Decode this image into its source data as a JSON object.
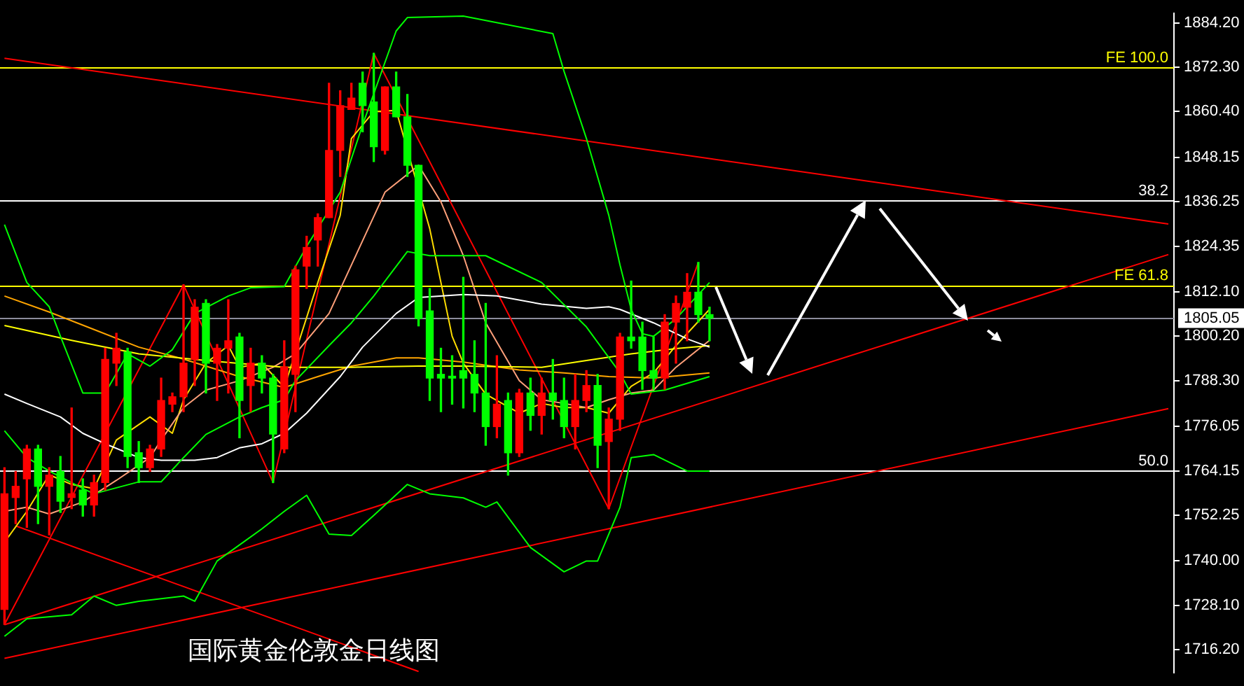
{
  "chart_data": {
    "type": "candlestick",
    "title": "国际黄金伦敦金日线图",
    "categories": [
      null,
      null,
      null,
      null,
      null,
      null,
      null,
      null,
      null,
      null,
      null,
      null,
      null,
      null,
      null,
      null,
      null,
      null,
      null,
      null,
      null,
      null,
      null,
      null,
      null,
      null,
      null,
      null,
      null,
      null,
      null,
      null,
      null,
      null,
      null,
      null,
      null,
      null,
      null,
      null,
      null,
      null,
      null,
      null,
      null,
      null,
      null,
      null,
      null,
      null,
      null,
      null,
      null,
      null,
      null,
      null,
      null,
      null,
      null,
      null,
      null,
      null,
      null,
      null,
      null,
      null,
      null,
      null,
      null,
      null,
      null,
      null,
      null,
      null,
      null,
      null,
      null,
      null,
      null,
      null,
      null,
      null,
      null,
      null,
      null,
      null,
      null,
      null,
      null,
      null,
      null,
      null,
      null,
      null,
      null,
      null,
      null,
      null,
      null,
      null,
      null,
      null,
      null,
      null,
      null
    ],
    "ohlc": [
      [
        1727,
        1765,
        1723,
        1758
      ],
      [
        1757,
        1764,
        1750,
        1760
      ],
      [
        1762,
        1771,
        1749,
        1770
      ],
      [
        1770,
        1771,
        1750,
        1760
      ],
      [
        1760,
        1765,
        1747,
        1763
      ],
      [
        1764,
        1768,
        1753,
        1756
      ],
      [
        1757,
        1781,
        1754,
        1758
      ],
      [
        1759,
        1762,
        1752,
        1755
      ],
      [
        1755,
        1763,
        1752,
        1761
      ],
      [
        1761,
        1797,
        1759,
        1794
      ],
      [
        1793,
        1801,
        1787,
        1797
      ],
      [
        1796,
        1797,
        1765,
        1768
      ],
      [
        1769,
        1772,
        1761,
        1765
      ],
      [
        1765,
        1771,
        1764,
        1770
      ],
      [
        1770,
        1789,
        1768,
        1783
      ],
      [
        1782,
        1785,
        1780,
        1784
      ],
      [
        1784,
        1814,
        1780,
        1793
      ],
      [
        1794,
        1810,
        1787,
        1808
      ],
      [
        1809,
        1810,
        1785,
        1793
      ],
      [
        1793,
        1798,
        1783,
        1797
      ],
      [
        1797,
        1810,
        1785,
        1799
      ],
      [
        1800,
        1801,
        1773,
        1783
      ],
      [
        1787,
        1797,
        1780,
        1793
      ],
      [
        1793,
        1795,
        1785,
        1789
      ],
      [
        1789,
        1790,
        1761,
        1774
      ],
      [
        1770,
        1799,
        1769,
        1792
      ],
      [
        1790,
        1819,
        1780,
        1818
      ],
      [
        1819,
        1827,
        1813,
        1824
      ],
      [
        1826,
        1833,
        1819,
        1832
      ],
      [
        1832,
        1868,
        1832,
        1850
      ],
      [
        1850,
        1866,
        1843,
        1862
      ],
      [
        1861,
        1868,
        1861,
        1864
      ],
      [
        1868,
        1871,
        1855,
        1862
      ],
      [
        1863,
        1876,
        1847,
        1851
      ],
      [
        1850,
        1867,
        1849,
        1867
      ],
      [
        1867,
        1871,
        1859,
        1859
      ],
      [
        1859,
        1865,
        1843,
        1846
      ],
      [
        1846,
        1846,
        1803,
        1805
      ],
      [
        1807,
        1813,
        1783,
        1789
      ],
      [
        1790,
        1797,
        1780,
        1789
      ],
      [
        1789.5,
        1795,
        1782,
        1789
      ],
      [
        1791,
        1816,
        1781,
        1789
      ],
      [
        1790,
        1799,
        1780,
        1785
      ],
      [
        1785,
        1809,
        1771,
        1776
      ],
      [
        1776,
        1795,
        1773,
        1782
      ],
      [
        1783,
        1785,
        1763,
        1769
      ],
      [
        1769,
        1786,
        1768,
        1785
      ],
      [
        1785,
        1789,
        1775,
        1779
      ],
      [
        1779,
        1789,
        1774,
        1785
      ],
      [
        1785,
        1794,
        1778,
        1783
      ],
      [
        1783,
        1789,
        1773,
        1776
      ],
      [
        1776,
        1790,
        1770,
        1783
      ],
      [
        1783,
        1791,
        1780,
        1787
      ],
      [
        1787,
        1790,
        1765,
        1771
      ],
      [
        1772,
        1781,
        1754,
        1778
      ],
      [
        1778,
        1801,
        1775,
        1800
      ],
      [
        1800,
        1815,
        1797,
        1799
      ],
      [
        1800,
        1804,
        1786,
        1791
      ],
      [
        1791,
        1800,
        1786,
        1789
      ],
      [
        1789,
        1806,
        1786,
        1804
      ],
      [
        1804,
        1811,
        1793,
        1809
      ],
      [
        1808,
        1817,
        1799,
        1812
      ],
      [
        1812,
        1820,
        1804,
        1806
      ],
      [
        1806,
        1808,
        1799,
        1805.05
      ],
      null,
      null,
      null,
      null,
      null,
      null,
      null,
      null,
      null,
      null,
      null,
      null,
      null,
      null,
      null,
      null,
      null,
      null,
      null,
      null,
      null,
      null,
      null,
      null,
      null,
      null,
      null,
      null,
      null,
      null,
      null,
      null,
      null,
      null,
      null,
      null,
      null,
      null,
      null,
      null,
      null
    ],
    "series": [
      {
        "type": "line",
        "color": "#00ff00",
        "values": [
          1830.1,
          null,
          1814.6,
          null,
          1808.1,
          1800.2,
          null,
          1785.0,
          null,
          1785.0,
          null,
          1795.5,
          null,
          1792.2,
          null,
          1796.6,
          null,
          1806.3,
          null,
          null,
          1811.0,
          null,
          1813.2,
          null,
          null,
          1813.5,
          null,
          1824.3,
          null,
          null,
          1838.8,
          null,
          1856.8,
          null,
          null,
          1882.0,
          1885.6,
          null,
          null,
          null,
          null,
          1886.0,
          null,
          null,
          null,
          null,
          null,
          null,
          null,
          1881.3,
          1871.2,
          null,
          1853.2,
          null,
          1832.6,
          1819.3,
          1807.4,
          1800.9,
          1800.2,
          null,
          1804.9,
          null,
          null,
          1814.6,
          null,
          null,
          null,
          null,
          null,
          null,
          null,
          null,
          null,
          null,
          null,
          null,
          null,
          null,
          null,
          null,
          null,
          null,
          null,
          null,
          null,
          null,
          null,
          null,
          null,
          null,
          null,
          null,
          null,
          null,
          null,
          null,
          null,
          null,
          null,
          null,
          null,
          null,
          null,
          null,
          null
        ]
      },
      {
        "type": "line",
        "color": "#00ff00",
        "values": [
          1774.9,
          null,
          1767.7,
          null,
          1764.1,
          null,
          null,
          1759.4,
          1758.0,
          null,
          null,
          null,
          1761.2,
          null,
          1761.2,
          null,
          1767.7,
          null,
          1773.9,
          null,
          null,
          1778.6,
          null,
          1781.1,
          null,
          1783.2,
          1788.3,
          null,
          null,
          1797.7,
          null,
          1803.8,
          null,
          1811.0,
          null,
          null,
          1822.9,
          null,
          1821.8,
          null,
          null,
          null,
          null,
          1821.8,
          null,
          null,
          null,
          null,
          1814.6,
          null,
          null,
          null,
          1802.7,
          null,
          null,
          1790.4,
          1784.7,
          null,
          null,
          1785.8,
          null,
          null,
          null,
          1789.4,
          null,
          null,
          null,
          null,
          null,
          null,
          null,
          null,
          null,
          null,
          null,
          null,
          null,
          null,
          null,
          null,
          null,
          null,
          null,
          null,
          null,
          null,
          null,
          null,
          null,
          null,
          null,
          null,
          null,
          null,
          null,
          null,
          null,
          null,
          null,
          null,
          null,
          null,
          null,
          null,
          null
        ]
      },
      {
        "type": "line",
        "color": "#00ff00",
        "values": [
          1719.8,
          null,
          1724.5,
          null,
          null,
          null,
          1725.6,
          null,
          1730.6,
          null,
          1728.1,
          null,
          1729.2,
          null,
          null,
          null,
          1730.6,
          1729.2,
          null,
          1740.0,
          null,
          null,
          null,
          1748.6,
          null,
          1753.3,
          null,
          1757.6,
          null,
          1747.2,
          null,
          1746.8,
          null,
          1752.2,
          null,
          null,
          1760.5,
          null,
          1758.0,
          null,
          null,
          1756.9,
          null,
          1754.4,
          1755.8,
          null,
          null,
          1743.6,
          null,
          null,
          1737.1,
          null,
          1740.0,
          1740.0,
          null,
          1754.4,
          1767.7,
          null,
          1768.5,
          null,
          null,
          1764.1,
          null,
          1764.1,
          null,
          null,
          null,
          null,
          null,
          null,
          null,
          null,
          null,
          null,
          null,
          null,
          null,
          null,
          null,
          null,
          null,
          null,
          null,
          null,
          null,
          null,
          null,
          null,
          null,
          null,
          null,
          null,
          null,
          null,
          null,
          null,
          null,
          null,
          null,
          null,
          null,
          null,
          null,
          null,
          null
        ]
      },
      {
        "type": "line",
        "color": "#ffffff",
        "values": [
          1784.7,
          null,
          1782.2,
          null,
          null,
          1778.6,
          null,
          1774.2,
          null,
          1771.4,
          null,
          null,
          1767.7,
          null,
          1767.0,
          null,
          null,
          1767.0,
          null,
          1767.7,
          null,
          1770.3,
          null,
          1771.4,
          null,
          1774.2,
          null,
          1779.6,
          null,
          null,
          1789.4,
          null,
          1797.3,
          null,
          null,
          1806.3,
          null,
          1810.6,
          null,
          null,
          null,
          1811.4,
          null,
          null,
          1811.0,
          null,
          null,
          null,
          1808.8,
          null,
          null,
          null,
          1807.7,
          null,
          1808.1,
          1807.4,
          null,
          null,
          1803.8,
          null,
          null,
          1799.5,
          null,
          1797.3,
          null,
          null,
          null,
          null,
          null,
          null,
          null,
          null,
          null,
          null,
          null,
          null,
          null,
          null,
          null,
          null,
          null,
          null,
          null,
          null,
          null,
          null,
          null,
          null,
          null,
          null,
          null,
          null,
          null,
          null,
          null,
          null,
          null,
          null,
          null,
          null,
          null,
          null,
          null,
          null,
          null
        ]
      },
      {
        "type": "line",
        "color": "#ffff00",
        "values": [
          1803.1,
          null,
          null,
          null,
          null,
          null,
          1799.1,
          null,
          null,
          null,
          null,
          null,
          1795.5,
          null,
          null,
          null,
          null,
          null,
          1793.7,
          null,
          null,
          null,
          null,
          null,
          null,
          1791.9,
          null,
          null,
          null,
          null,
          null,
          1791.9,
          null,
          null,
          null,
          null,
          null,
          1792.2,
          null,
          null,
          null,
          1792.2,
          null,
          null,
          null,
          null,
          null,
          null,
          1791.9,
          null,
          null,
          null,
          1793.7,
          null,
          null,
          null,
          1795.5,
          null,
          null,
          null,
          1796.9,
          null,
          null,
          1797.7,
          null,
          null,
          null,
          null,
          null,
          null,
          null,
          null,
          null,
          null,
          null,
          null,
          null,
          null,
          null,
          null,
          null,
          null,
          null,
          null,
          null,
          null,
          null,
          null,
          null,
          null,
          null,
          null,
          null,
          null,
          null,
          null,
          null,
          null,
          null,
          null,
          null,
          null,
          null,
          null,
          null
        ]
      },
      {
        "type": "line",
        "color": "#ffa500",
        "values": [
          1811.0,
          null,
          null,
          null,
          1806.7,
          null,
          null,
          null,
          1802.0,
          null,
          null,
          null,
          1797.3,
          null,
          null,
          null,
          1794.1,
          null,
          null,
          null,
          null,
          1789.4,
          null,
          null,
          null,
          1786.5,
          null,
          null,
          1789.4,
          null,
          null,
          1792.2,
          null,
          null,
          null,
          1794.4,
          null,
          1794.4,
          null,
          null,
          null,
          1793.3,
          null,
          null,
          null,
          null,
          1791.2,
          null,
          null,
          null,
          1790.4,
          null,
          null,
          null,
          1789.4,
          null,
          null,
          null,
          1789.0,
          null,
          null,
          null,
          null,
          1790.4,
          null,
          null,
          null,
          null,
          null,
          null,
          null,
          null,
          null,
          null,
          null,
          null,
          null,
          null,
          null,
          null,
          null,
          null,
          null,
          null,
          null,
          null,
          null,
          null,
          null,
          null,
          null,
          null,
          null,
          null,
          null,
          null,
          null,
          null,
          null,
          null,
          null,
          null,
          null,
          null,
          null
        ]
      },
      {
        "type": "line",
        "color": "#ffa07a",
        "values": [
          1753.3,
          null,
          1754.4,
          null,
          1752.6,
          null,
          null,
          1755.8,
          null,
          null,
          1761.6,
          null,
          null,
          1767.7,
          1772.4,
          null,
          1781.1,
          null,
          1785.8,
          null,
          null,
          1788.3,
          null,
          null,
          1791.9,
          null,
          1795.5,
          null,
          null,
          1806.3,
          null,
          1819.3,
          null,
          null,
          1838.8,
          null,
          null,
          1846.0,
          null,
          1836.2,
          null,
          1821.8,
          null,
          1803.8,
          null,
          null,
          1788.3,
          null,
          1783.2,
          null,
          1782.2,
          null,
          1781.1,
          null,
          1783.2,
          null,
          1785.0,
          null,
          1785.8,
          null,
          1791.9,
          null,
          null,
          1799.1,
          null,
          null,
          null,
          null,
          null,
          null,
          null,
          null,
          null,
          null,
          null,
          null,
          null,
          null,
          null,
          null,
          null,
          null,
          null,
          null,
          null,
          null,
          null,
          null,
          null,
          null,
          null,
          null,
          null,
          null,
          null,
          null,
          null,
          null,
          null,
          null,
          null,
          null,
          null,
          null,
          null
        ]
      },
      {
        "type": "line",
        "color": "#ffdd00",
        "values": [
          1745.0,
          null,
          1753.3,
          null,
          1763.1,
          null,
          1760.5,
          null,
          1759.4,
          null,
          1772.4,
          null,
          null,
          1778.6,
          null,
          1774.2,
          1783.2,
          null,
          1793.0,
          null,
          1797.7,
          1791.9,
          null,
          1793.0,
          null,
          1786.5,
          null,
          null,
          1814.6,
          null,
          1832.6,
          1853.2,
          null,
          1860.4,
          null,
          1860.7,
          null,
          null,
          1829.0,
          null,
          1800.2,
          1793.0,
          null,
          1784.7,
          null,
          null,
          1779.6,
          null,
          1782.2,
          null,
          1781.1,
          null,
          1781.1,
          null,
          1779.6,
          null,
          1786.8,
          null,
          1790.4,
          null,
          1797.7,
          null,
          null,
          1807.4,
          null,
          null,
          null,
          null,
          null,
          null,
          null,
          null,
          null,
          null,
          null,
          null,
          null,
          null,
          null,
          null,
          null,
          null,
          null,
          null,
          null,
          null,
          null,
          null,
          null,
          null,
          null,
          null,
          null,
          null,
          null,
          null,
          null,
          null,
          null,
          null,
          null,
          null,
          null,
          null,
          null
        ]
      },
      {
        "type": "line",
        "color": "#ff0000",
        "values": [
          1723,
          null,
          null,
          null,
          null,
          null,
          null,
          null,
          null,
          null,
          null,
          null,
          null,
          null,
          null,
          null,
          1814,
          null,
          null,
          null,
          null,
          null,
          null,
          null,
          1761,
          null,
          null,
          null,
          null,
          null,
          null,
          null,
          null,
          1876,
          null,
          null,
          null,
          null,
          null,
          null,
          null,
          null,
          null,
          null,
          null,
          null,
          null,
          null,
          null,
          null,
          null,
          null,
          null,
          null,
          1754,
          null,
          null,
          null,
          null,
          null,
          null,
          null,
          1820,
          null,
          null,
          null,
          null,
          null,
          null,
          null,
          null,
          null,
          null,
          null,
          null,
          null,
          null,
          null,
          null,
          null,
          null,
          null,
          null,
          null,
          null,
          null,
          null,
          null,
          null,
          null,
          null,
          null,
          null,
          null,
          null,
          null,
          null,
          null,
          null,
          null,
          null,
          null,
          null,
          null,
          null
        ]
      },
      {
        "type": "line",
        "color": "#ff0000",
        "values": [
          1874.7,
          null,
          null,
          null,
          null,
          null,
          null,
          null,
          null,
          null,
          null,
          null,
          null,
          null,
          null,
          null,
          null,
          null,
          null,
          null,
          null,
          null,
          null,
          null,
          null,
          null,
          null,
          null,
          null,
          null,
          null,
          null,
          null,
          null,
          null,
          null,
          null,
          null,
          null,
          null,
          null,
          null,
          null,
          null,
          null,
          null,
          null,
          null,
          null,
          null,
          null,
          null,
          null,
          null,
          null,
          null,
          null,
          null,
          null,
          null,
          null,
          null,
          null,
          null,
          null,
          null,
          null,
          null,
          null,
          null,
          null,
          null,
          null,
          null,
          null,
          null,
          null,
          null,
          null,
          null,
          null,
          null,
          null,
          null,
          null,
          null,
          null,
          null,
          null,
          null,
          null,
          null,
          null,
          null,
          null,
          null,
          null,
          null,
          null,
          null,
          null,
          null,
          null,
          null,
          1830.3
        ]
      },
      {
        "type": "line",
        "color": "#ff0000",
        "values": [
          1722.9,
          null,
          null,
          null,
          null,
          null,
          null,
          null,
          null,
          null,
          null,
          null,
          null,
          null,
          null,
          null,
          null,
          null,
          null,
          null,
          null,
          null,
          null,
          null,
          null,
          null,
          null,
          null,
          null,
          null,
          null,
          null,
          null,
          null,
          null,
          null,
          null,
          null,
          null,
          null,
          null,
          null,
          null,
          null,
          null,
          null,
          null,
          null,
          null,
          null,
          null,
          null,
          null,
          null,
          null,
          null,
          null,
          null,
          null,
          null,
          null,
          null,
          null,
          null,
          null,
          null,
          null,
          null,
          null,
          null,
          null,
          null,
          null,
          null,
          null,
          null,
          null,
          null,
          null,
          null,
          null,
          null,
          null,
          null,
          null,
          null,
          null,
          null,
          null,
          null,
          null,
          null,
          null,
          null,
          null,
          null,
          null,
          null,
          null,
          null,
          null,
          null,
          null,
          null,
          1822.1
        ]
      },
      {
        "type": "line",
        "color": "#ff0000",
        "values": [
          1713.9,
          null,
          null,
          null,
          null,
          null,
          null,
          null,
          null,
          null,
          null,
          null,
          null,
          null,
          null,
          null,
          null,
          null,
          null,
          null,
          null,
          null,
          null,
          null,
          null,
          null,
          null,
          null,
          null,
          null,
          null,
          null,
          null,
          null,
          null,
          null,
          null,
          null,
          null,
          null,
          null,
          null,
          null,
          null,
          null,
          null,
          null,
          null,
          null,
          null,
          null,
          null,
          null,
          null,
          null,
          null,
          null,
          null,
          null,
          null,
          null,
          null,
          null,
          null,
          null,
          null,
          null,
          null,
          null,
          null,
          null,
          null,
          null,
          null,
          null,
          null,
          null,
          null,
          null,
          null,
          null,
          null,
          null,
          null,
          null,
          null,
          null,
          null,
          null,
          null,
          null,
          null,
          null,
          null,
          null,
          null,
          null,
          null,
          null,
          null,
          null,
          null,
          null,
          null,
          1780.8
        ]
      },
      {
        "type": "line",
        "color": "#ff0000",
        "values": [
          null,
          1749.4,
          null,
          null,
          null,
          null,
          null,
          null,
          null,
          null,
          null,
          null,
          null,
          null,
          null,
          null,
          null,
          null,
          null,
          null,
          null,
          null,
          null,
          null,
          null,
          null,
          null,
          null,
          null,
          null,
          null,
          null,
          null,
          null,
          null,
          null,
          null,
          1710.4,
          null,
          null,
          null,
          null,
          null,
          null,
          null,
          null,
          null,
          null,
          null,
          null,
          null,
          null,
          null,
          null,
          null,
          null,
          null,
          null,
          null,
          null,
          null,
          null,
          null,
          null,
          null,
          null,
          null,
          null,
          null,
          null,
          null,
          null,
          null,
          null,
          null,
          null,
          null,
          null,
          null,
          null,
          null,
          null,
          null,
          null,
          null,
          null,
          null,
          null,
          null,
          null,
          null,
          null,
          null,
          null,
          null,
          null,
          null,
          null,
          null,
          null,
          null,
          null,
          null,
          null,
          null
        ]
      }
    ],
    "ref_lines": [
      {
        "axis": "y",
        "value": 1872.3,
        "color": "#ffff00"
      },
      {
        "axis": "y",
        "value": 1836.6,
        "color": "#ffffff"
      },
      {
        "axis": "y",
        "value": 1813.9,
        "color": "#ffff00"
      },
      {
        "axis": "y",
        "value": 1805.05,
        "label": "1805.05",
        "color": "#8c8c9c"
      },
      {
        "axis": "y",
        "value": 1764.2,
        "color": "#ffffff"
      }
    ],
    "annotations": [
      {
        "text": "FE 100.0",
        "y": 1872.3
      },
      {
        "text": "38.2",
        "y": 1836.6
      },
      {
        "text": "FE 61.8",
        "y": 1813.9
      },
      {
        "text": "50.0",
        "y": 1764.2
      }
    ],
    "ylim": [
      1710.1,
      1886.7
    ],
    "yticks": [
      {
        "value": 1884.2,
        "label": "1884.20"
      },
      {
        "value": 1872.3,
        "label": "1872.30"
      },
      {
        "value": 1860.4,
        "label": "1860.40"
      },
      {
        "value": 1848.15,
        "label": "1848.15"
      },
      {
        "value": 1836.25,
        "label": "1836.25"
      },
      {
        "value": 1824.35,
        "label": "1824.35"
      },
      {
        "value": 1812.1,
        "label": "1812.10"
      },
      {
        "value": 1800.2,
        "label": "1800.20"
      },
      {
        "value": 1788.3,
        "label": "1788.30"
      },
      {
        "value": 1776.05,
        "label": "1776.05"
      },
      {
        "value": 1764.15,
        "label": "1764.15"
      },
      {
        "value": 1752.25,
        "label": "1752.25"
      },
      {
        "value": 1740,
        "label": "1740.00"
      },
      {
        "value": 1728.1,
        "label": "1728.10"
      },
      {
        "value": 1716.2,
        "label": "1716.20"
      }
    ],
    "tick_labels": "y",
    "grid": false,
    "legend": false,
    "marker": "none"
  }
}
